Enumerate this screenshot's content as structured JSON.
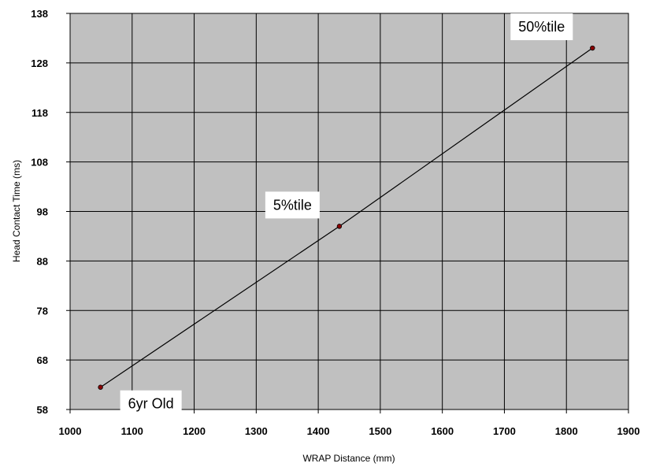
{
  "chart_data": {
    "type": "line",
    "title": "",
    "xlabel": "WRAP Distance (mm)",
    "ylabel": "Head Contact Time (ms)",
    "xlim": [
      1000,
      1900
    ],
    "ylim": [
      58,
      138
    ],
    "x_ticks": [
      1000,
      1100,
      1200,
      1300,
      1400,
      1500,
      1600,
      1700,
      1800,
      1900
    ],
    "y_ticks": [
      58,
      68,
      78,
      88,
      98,
      108,
      118,
      128,
      138
    ],
    "grid": true,
    "legend": "none",
    "series": [
      {
        "x": [
          1049,
          1434,
          1842
        ],
        "y": [
          62.5,
          95,
          131
        ],
        "color": "#000000",
        "marker_color": "#8b0000"
      }
    ],
    "annotations": [
      {
        "text": "6yr Old",
        "x": 1049,
        "y": 62.5,
        "anchor": "below-right"
      },
      {
        "text": "5%tile",
        "x": 1434,
        "y": 95,
        "anchor": "upper-left"
      },
      {
        "text": "50%tile",
        "x": 1842,
        "y": 131,
        "anchor": "upper-left"
      }
    ],
    "plot_background": "#c0c0c0",
    "grid_color": "#000000"
  }
}
